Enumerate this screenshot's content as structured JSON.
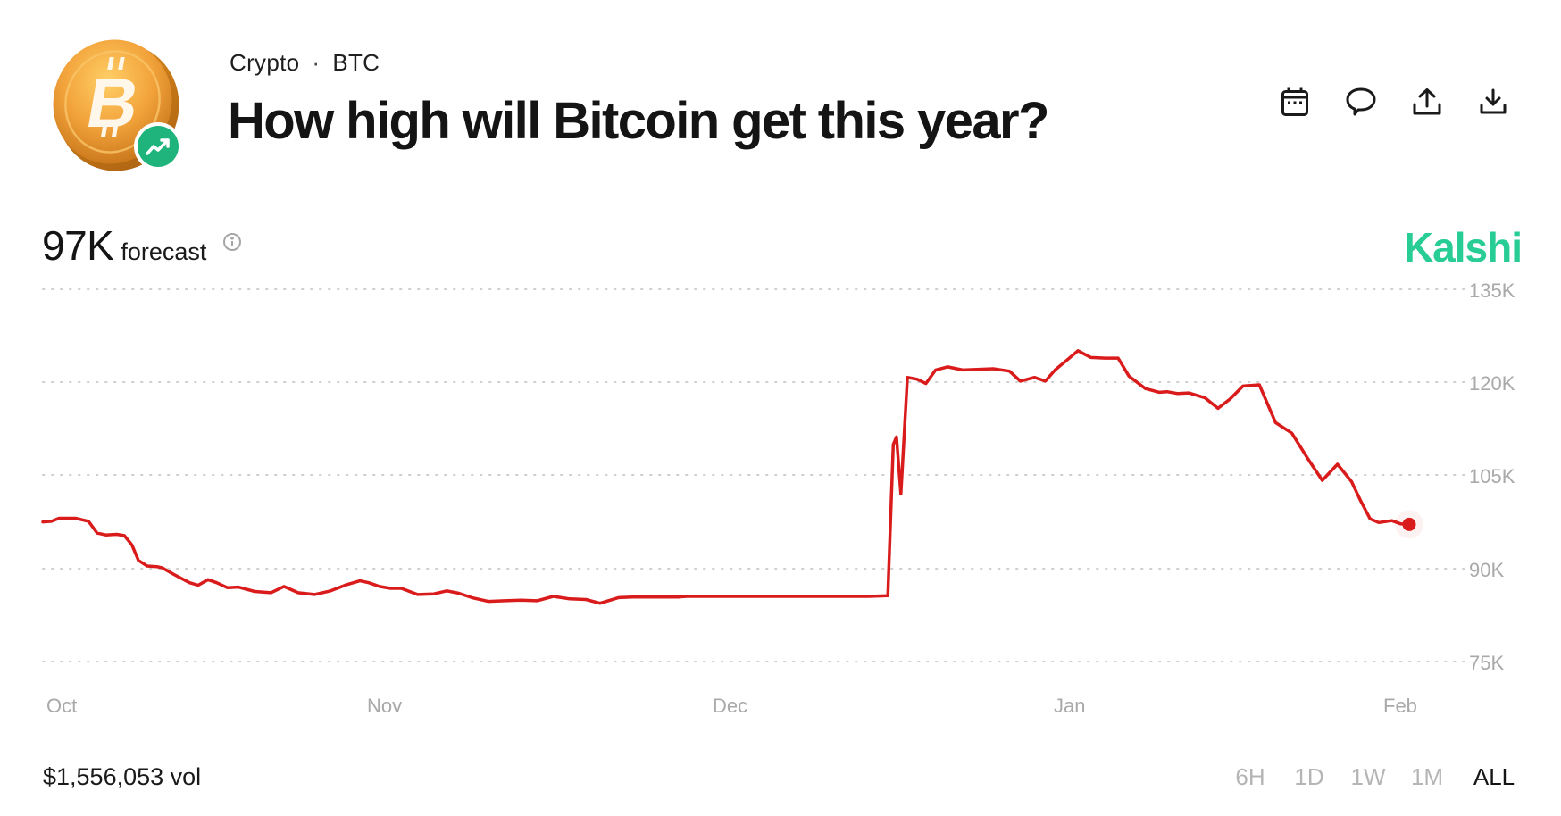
{
  "header": {
    "category": "Crypto",
    "separator": "·",
    "ticker": "BTC",
    "title": "How high will Bitcoin get this year?",
    "icons": [
      "calendar-icon",
      "comment-icon",
      "share-icon",
      "download-icon"
    ]
  },
  "forecast": {
    "value": "97K",
    "label": "forecast"
  },
  "brand": {
    "name": "Kalshi",
    "color": "#28cc95"
  },
  "footer": {
    "volume": "$1,556,053 vol",
    "ranges": [
      "6H",
      "1D",
      "1W",
      "1M",
      "ALL"
    ],
    "active_range": "ALL"
  },
  "colors": {
    "line": "#d91b1b",
    "grid": "#cfcfcf",
    "axis_label": "#a9a9a9"
  },
  "chart_data": {
    "type": "line",
    "title": "How high will Bitcoin get this year?",
    "xlabel": "",
    "ylabel": "",
    "y_ticks": [
      "135K",
      "120K",
      "105K",
      "90K",
      "75K"
    ],
    "ylim": [
      75000,
      135000
    ],
    "x_ticks": [
      "Oct",
      "Nov",
      "Dec",
      "Jan",
      "Feb"
    ],
    "grid": true,
    "grid_style": "dotted",
    "legend": "none",
    "series": [
      {
        "name": "Forecast",
        "x": [
          0,
          0.8,
          1.5,
          3,
          4.2,
          5,
          5.8,
          6.8,
          7.5,
          8.2,
          8.8,
          9.6,
          10.5,
          11,
          12,
          13.5,
          14.3,
          15.2,
          16,
          17,
          18,
          19.5,
          21,
          22.2,
          23.5,
          25,
          26.5,
          28,
          29.2,
          30,
          31,
          32,
          33,
          34.5,
          36,
          37.2,
          38.3,
          39.5,
          41,
          42.5,
          44,
          45.5,
          47,
          48.5,
          50,
          51.3,
          53,
          54.3,
          55.5,
          56.5,
          57.5,
          58.5,
          59.3,
          60.3,
          62,
          64,
          66,
          68,
          70,
          72,
          74,
          76,
          77.8,
          78.3,
          78.6,
          79.0,
          79.6,
          80.5,
          81.3,
          82.2,
          83.3,
          84.7,
          86,
          87.5,
          89,
          90,
          91.3,
          92.3,
          93.2,
          94.3,
          95.3,
          96.5,
          97.8,
          99,
          100,
          101.5,
          102.8,
          103.5,
          104.5,
          105.5,
          107,
          108.2,
          109.3,
          110.5,
          112,
          113.5,
          115,
          116.5,
          117.8,
          119.2,
          120.5,
          121.3,
          122.2,
          123,
          124.2,
          125,
          125.8
        ],
        "values": [
          97.5,
          97.6,
          98.1,
          98.1,
          97.6,
          95.7,
          95.4,
          95.5,
          95.3,
          93.8,
          91.3,
          90.4,
          90.3,
          90.1,
          89.1,
          87.7,
          87.3,
          88.2,
          87.7,
          86.9,
          87.0,
          86.3,
          86.1,
          87.1,
          86.1,
          85.8,
          86.4,
          87.4,
          88.0,
          87.7,
          87.1,
          86.8,
          86.8,
          85.8,
          85.9,
          86.4,
          86.0,
          85.3,
          84.7,
          84.8,
          84.9,
          84.8,
          85.5,
          85.1,
          85.0,
          84.4,
          85.3,
          85.4,
          85.4,
          85.4,
          85.4,
          85.4,
          85.5,
          85.5,
          85.5,
          85.5,
          85.5,
          85.5,
          85.5,
          85.5,
          85.5,
          85.5,
          85.6,
          110.0,
          111.2,
          102.0,
          120.8,
          120.5,
          119.8,
          122.0,
          122.5,
          122.0,
          122.1,
          122.2,
          121.8,
          120.2,
          120.8,
          120.2,
          122.0,
          123.6,
          125.1,
          124.0,
          123.9,
          123.9,
          121.0,
          119.0,
          118.4,
          118.5,
          118.2,
          118.3,
          117.5,
          115.8,
          117.3,
          119.4,
          119.6,
          113.5,
          111.8,
          107.6,
          104.2,
          106.8,
          104.0,
          101.0,
          98.0,
          97.4,
          97.7,
          97.2,
          97.1
        ],
        "unit": "K USD",
        "last_value": 97000
      }
    ]
  }
}
